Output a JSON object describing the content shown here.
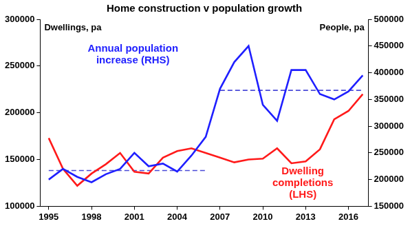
{
  "chart_data": {
    "type": "line",
    "title": "Home construction v population growth",
    "ylabel": "Dwellings, pa",
    "y2label": "People, pa",
    "x": [
      1995,
      1996,
      1997,
      1998,
      1999,
      2000,
      2001,
      2002,
      2003,
      2004,
      2005,
      2006,
      2007,
      2008,
      2009,
      2010,
      2011,
      2012,
      2013,
      2014,
      2015,
      2016,
      2017
    ],
    "xlim": [
      1994.4,
      2017.4
    ],
    "xticks": [
      1995,
      1998,
      2001,
      2004,
      2007,
      2010,
      2013,
      2016
    ],
    "ylim": [
      100000,
      300000
    ],
    "yticks": [
      100000,
      150000,
      200000,
      250000,
      300000
    ],
    "y2lim": [
      150000,
      500000
    ],
    "y2ticks": [
      150000,
      200000,
      250000,
      300000,
      350000,
      400000,
      450000,
      500000
    ],
    "grid": false,
    "series": [
      {
        "name": "Annual population increase (RHS)",
        "color": "#1f1fff",
        "axis": "y2",
        "line_style": "solid",
        "marker": "none",
        "values": [
          200000,
          220000,
          205000,
          195000,
          210000,
          220000,
          250000,
          225000,
          230000,
          215000,
          245000,
          280000,
          370000,
          420000,
          450000,
          340000,
          310000,
          405000,
          405000,
          360000,
          350000,
          365000,
          395000
        ]
      },
      {
        "name": "Dwelling completions (LHS)",
        "color": "#ff1a1a",
        "axis": "y",
        "line_style": "solid",
        "marker": "none",
        "values": [
          173000,
          140000,
          122000,
          135000,
          145000,
          157000,
          137000,
          135000,
          152000,
          159000,
          162000,
          157000,
          152000,
          147000,
          150000,
          151000,
          162000,
          146000,
          148000,
          161000,
          193000,
          202000,
          220000
        ]
      },
      {
        "color": "#4a4ad8",
        "axis": "y2",
        "line_style": "dashed",
        "marker": "none",
        "values": [
          217000,
          217000,
          217000,
          217000,
          217000,
          217000,
          217000,
          217000,
          217000,
          217000,
          217000,
          217000,
          null,
          null,
          null,
          null,
          null,
          null,
          null,
          null,
          null,
          null,
          null
        ]
      },
      {
        "color": "#4a4ad8",
        "axis": "y2",
        "line_style": "dashed",
        "marker": "none",
        "values": [
          null,
          null,
          null,
          null,
          null,
          null,
          null,
          null,
          null,
          null,
          null,
          null,
          367000,
          367000,
          367000,
          367000,
          367000,
          367000,
          367000,
          367000,
          367000,
          367000,
          367000
        ]
      }
    ]
  }
}
